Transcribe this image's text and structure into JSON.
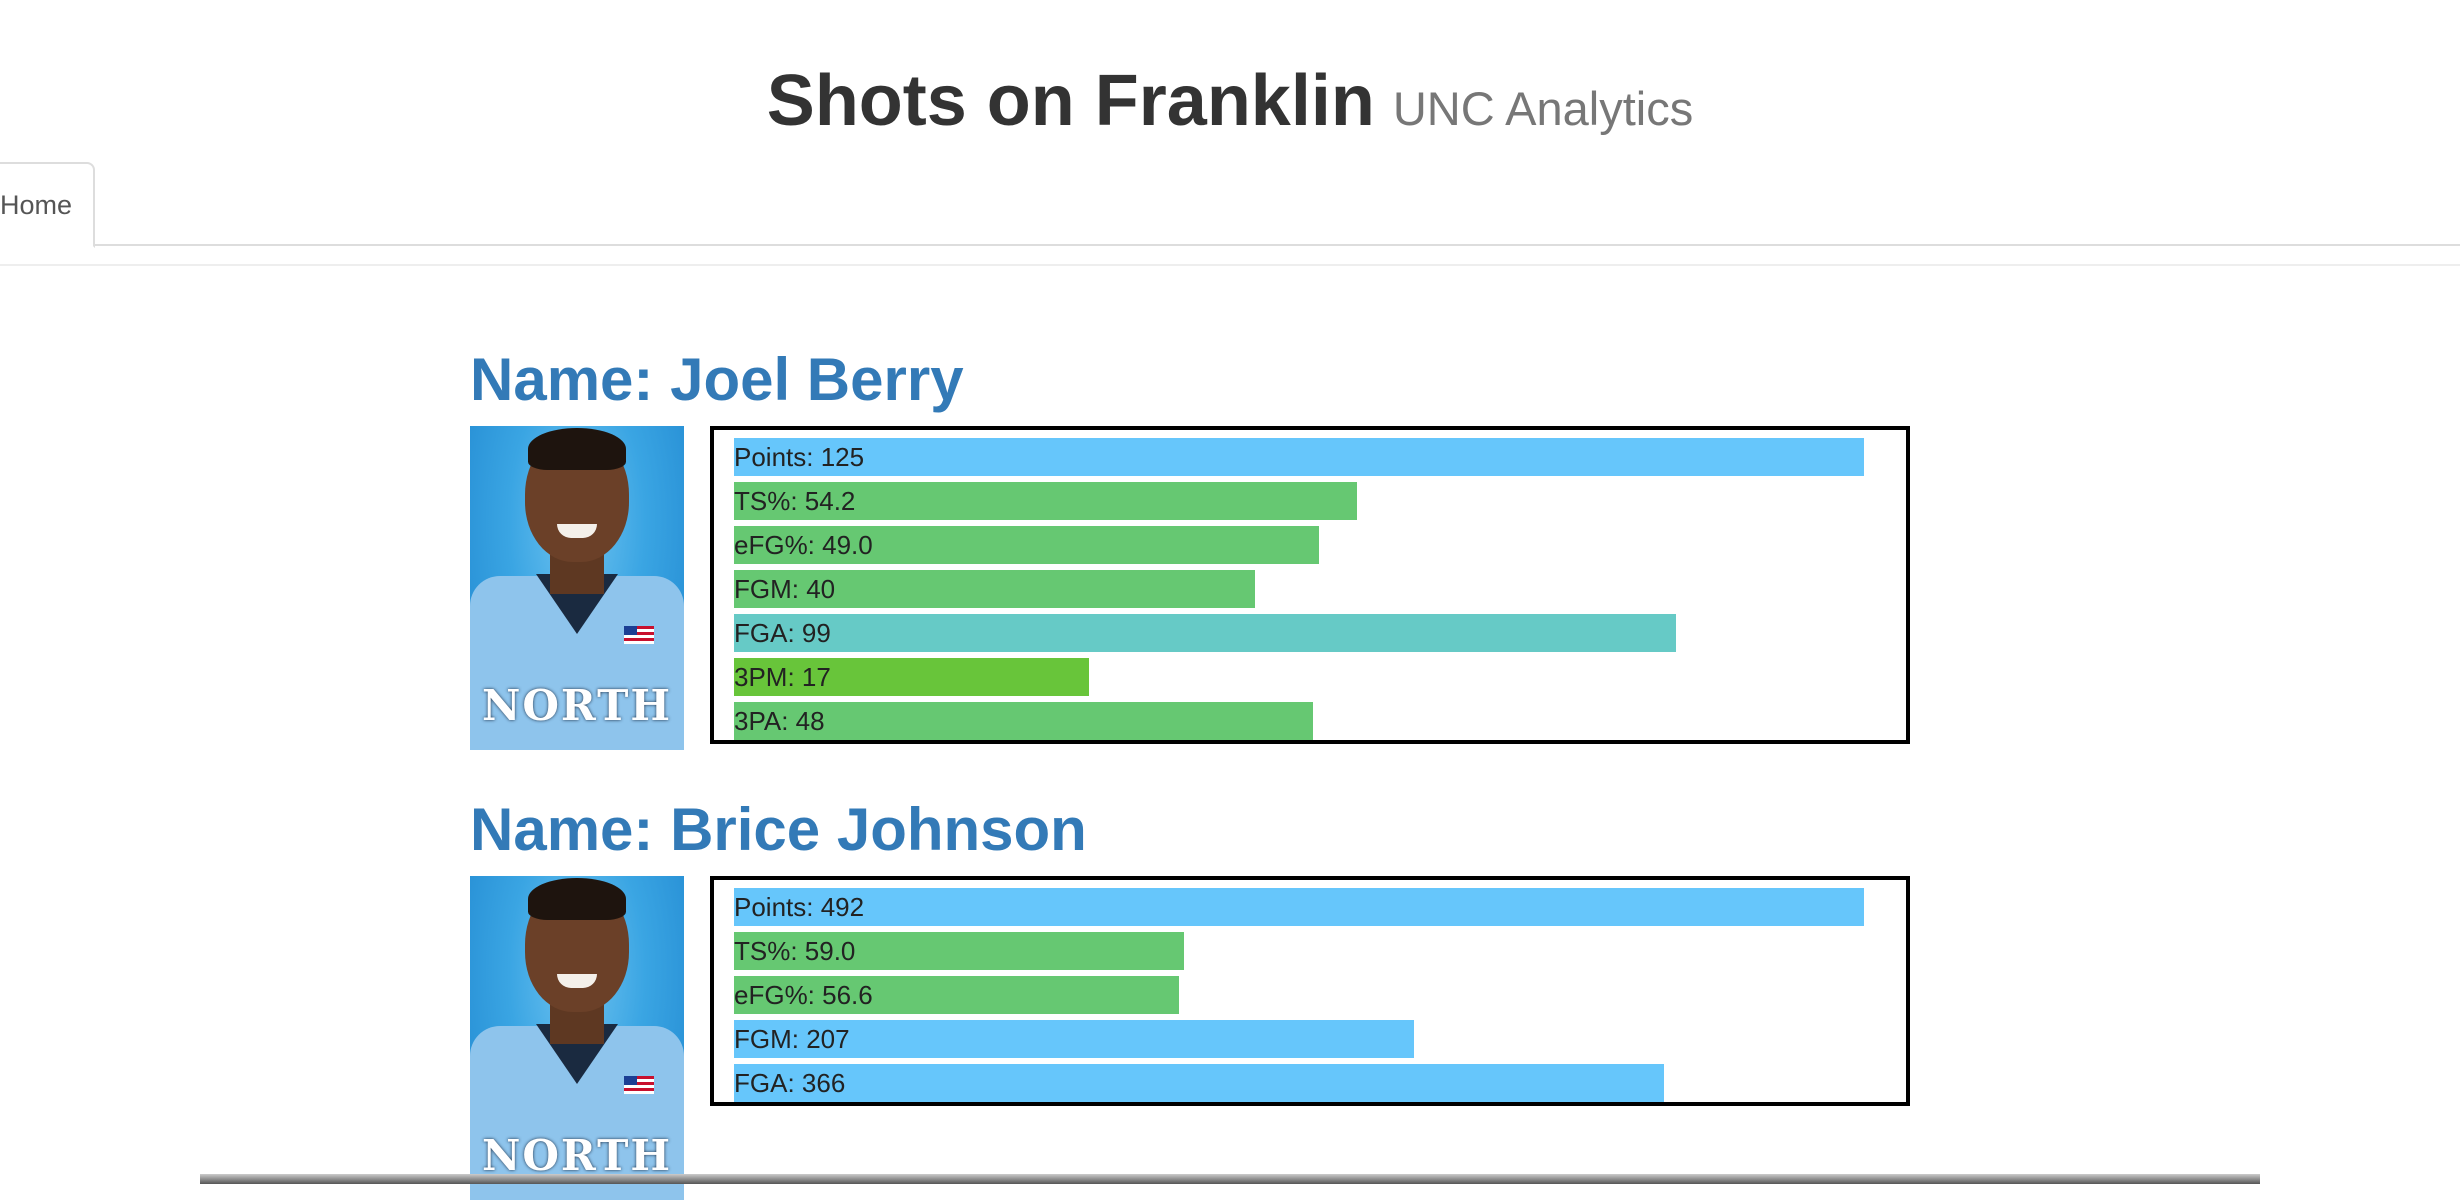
{
  "header": {
    "title": "Shots on Franklin",
    "subtitle": "UNC Analytics"
  },
  "nav": {
    "home_label": "Home"
  },
  "colors": {
    "points_bar": "#66c6fb",
    "pct_bar": "#66c872",
    "fgm_bar": "#66c872",
    "fga_bar": "#66cac6",
    "threepm_bar": "#68c53a",
    "title_blue": "#337ab7"
  },
  "players": [
    {
      "name_label": "Name: Joel Berry",
      "stats": [
        {
          "label": "Points: 125",
          "fill": 1.0,
          "color": "#66c6fb"
        },
        {
          "label": "TS%: 54.2",
          "fill": 0.551,
          "color": "#66c872"
        },
        {
          "label": "eFG%: 49.0",
          "fill": 0.518,
          "color": "#66c872"
        },
        {
          "label": "FGM: 40",
          "fill": 0.461,
          "color": "#66c872"
        },
        {
          "label": "FGA: 99",
          "fill": 0.834,
          "color": "#66cac6"
        },
        {
          "label": "3PM: 17",
          "fill": 0.314,
          "color": "#68c53a"
        },
        {
          "label": "3PA: 48",
          "fill": 0.512,
          "color": "#66c872"
        }
      ]
    },
    {
      "name_label": "Name: Brice Johnson",
      "stats": [
        {
          "label": "Points: 492",
          "fill": 1.0,
          "color": "#66c6fb"
        },
        {
          "label": "TS%: 59.0",
          "fill": 0.398,
          "color": "#66c872"
        },
        {
          "label": "eFG%: 56.6",
          "fill": 0.394,
          "color": "#66c872"
        },
        {
          "label": "FGM: 207",
          "fill": 0.602,
          "color": "#66c6fb"
        },
        {
          "label": "FGA: 366",
          "fill": 0.823,
          "color": "#66c6fb"
        }
      ]
    }
  ]
}
